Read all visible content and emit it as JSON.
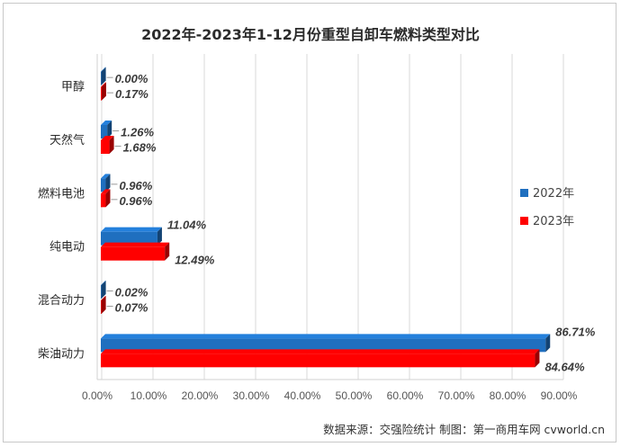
{
  "chart_data": {
    "type": "bar",
    "orientation": "horizontal",
    "title": "2022年-2023年1-12月份重型自卸车燃料类型对比",
    "categories": [
      "甲醇",
      "天然气",
      "燃料电池",
      "纯电动",
      "混合动力",
      "柴油动力"
    ],
    "series": [
      {
        "name": "2022年",
        "color": "#1f6fbf",
        "values": [
          0.0,
          1.26,
          0.96,
          11.04,
          0.02,
          86.71
        ],
        "labels": [
          "0.00%",
          "1.26%",
          "0.96%",
          "11.04%",
          "0.02%",
          "86.71%"
        ]
      },
      {
        "name": "2023年",
        "color": "#ff0000",
        "values": [
          0.17,
          1.68,
          0.96,
          12.49,
          0.07,
          84.64
        ],
        "labels": [
          "0.17%",
          "1.68%",
          "0.96%",
          "12.49%",
          "0.07%",
          "84.64%"
        ]
      }
    ],
    "xlim": [
      0,
      90
    ],
    "xticks": [
      "0.00%",
      "10.00%",
      "20.00%",
      "30.00%",
      "40.00%",
      "50.00%",
      "60.00%",
      "70.00%",
      "80.00%",
      "90.00%"
    ],
    "grid": true,
    "legend_position": "right"
  },
  "source_text": "数据来源：交强险统计    制图：第一商用车网 cvworld.cn"
}
